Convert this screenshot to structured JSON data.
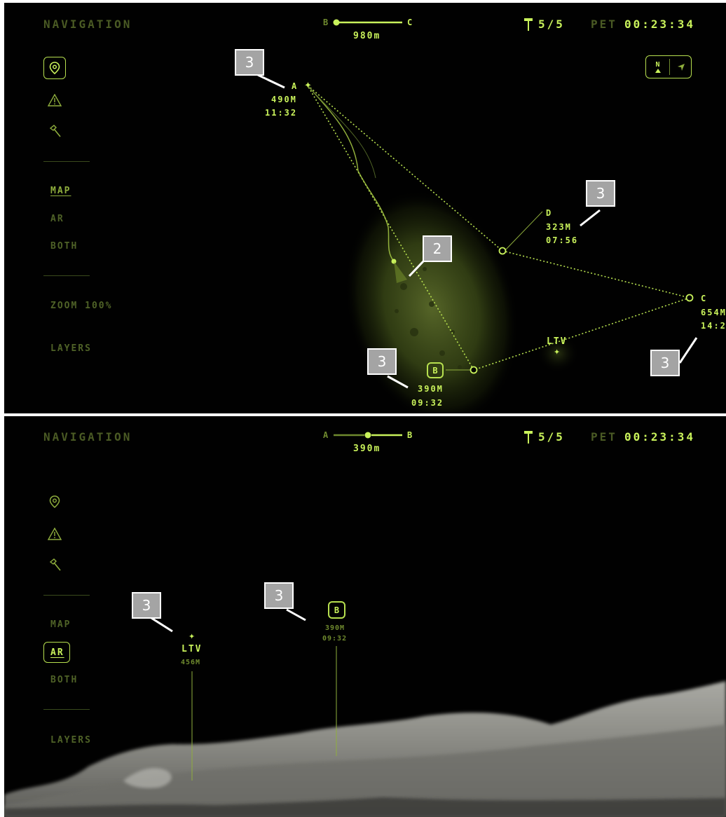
{
  "colors": {
    "accent": "#c9f25b",
    "dim": "#4a5a24",
    "background": "#010101",
    "callout": "#a4a4a4"
  },
  "map_view": {
    "title": "NAVIGATION",
    "segment": {
      "from": "B",
      "to": "C",
      "distance": "980m"
    },
    "samples": "5/5",
    "pet_label": "PET",
    "pet_time": "00:23:34",
    "compass": {
      "north": "N",
      "north_icon": "north-arrow-icon",
      "heading_icon": "heading-arrow-icon"
    },
    "sidebar": {
      "icons": [
        "map-pin-icon",
        "warning-icon",
        "hammer-icon"
      ],
      "modes": [
        "MAP",
        "AR",
        "BOTH"
      ],
      "active_mode": "MAP",
      "zoom": "ZOOM 100%",
      "layers": "LAYERS"
    },
    "waypoints": {
      "A": {
        "name": "A",
        "distance": "490M",
        "time": "11:32"
      },
      "B": {
        "name": "B",
        "distance": "390M",
        "time": "09:32"
      },
      "C": {
        "name": "C",
        "distance": "654M",
        "time": "14:2"
      },
      "D": {
        "name": "D",
        "distance": "323M",
        "time": "07:56"
      },
      "LTV": {
        "name": "LTV"
      }
    },
    "callouts": [
      "3",
      "3",
      "2",
      "3",
      "3"
    ]
  },
  "ar_view": {
    "title": "NAVIGATION",
    "segment": {
      "from": "A",
      "to": "B",
      "distance": "390m"
    },
    "samples": "5/5",
    "pet_label": "PET",
    "pet_time": "00:23:34",
    "sidebar": {
      "icons": [
        "map-pin-icon",
        "warning-icon",
        "hammer-icon"
      ],
      "modes": [
        "MAP",
        "AR",
        "BOTH"
      ],
      "active_mode": "AR",
      "layers": "LAYERS"
    },
    "markers": {
      "LTV": {
        "name": "LTV",
        "distance": "456M"
      },
      "B": {
        "name": "B",
        "distance": "390M",
        "time": "09:32"
      }
    },
    "callouts": [
      "3",
      "3"
    ]
  }
}
